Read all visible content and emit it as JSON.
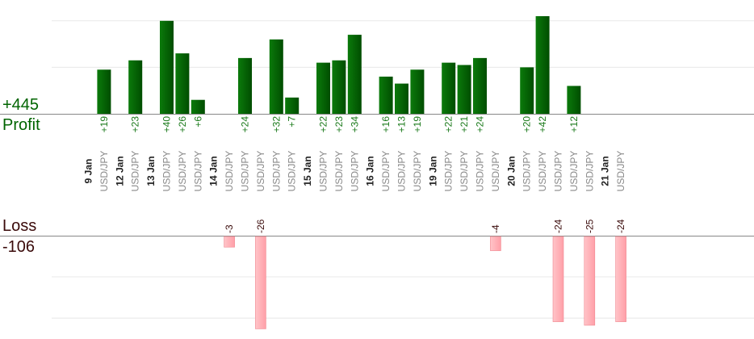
{
  "summary": {
    "profit_total": "+445",
    "profit_label": "Profit",
    "loss_label": "Loss",
    "loss_total": "-106"
  },
  "colors": {
    "profit": "#0a6a0a",
    "loss": "#ffb3b9",
    "axis": "#888888",
    "grid": "#e8e8e8",
    "date": "#222222",
    "pair": "#888888"
  },
  "chart_data": {
    "type": "bar",
    "profit_unit_step": 10,
    "loss_unit_step": 10,
    "columns": [
      {
        "date": "9 Jan"
      },
      {
        "pair": "USD/JPY",
        "value": 19,
        "label": "+19"
      },
      {
        "date": "12 Jan"
      },
      {
        "pair": "USD/JPY",
        "value": 23,
        "label": "+23"
      },
      {
        "date": "13 Jan"
      },
      {
        "pair": "USD/JPY",
        "value": 40,
        "label": "+40"
      },
      {
        "pair": "USD/JPY",
        "value": 26,
        "label": "+26"
      },
      {
        "pair": "USD/JPY",
        "value": 6,
        "label": "+6"
      },
      {
        "date": "14 Jan"
      },
      {
        "pair": "USD/JPY",
        "value": -3,
        "label": "-3"
      },
      {
        "pair": "USD/JPY",
        "value": 24,
        "label": "+24"
      },
      {
        "pair": "USD/JPY",
        "value": -26,
        "label": "-26"
      },
      {
        "pair": "USD/JPY",
        "value": 32,
        "label": "+32"
      },
      {
        "pair": "USD/JPY",
        "value": 7,
        "label": "+7"
      },
      {
        "date": "15 Jan"
      },
      {
        "pair": "USD/JPY",
        "value": 22,
        "label": "+22"
      },
      {
        "pair": "USD/JPY",
        "value": 23,
        "label": "+23"
      },
      {
        "pair": "USD/JPY",
        "value": 34,
        "label": "+34"
      },
      {
        "date": "16 Jan"
      },
      {
        "pair": "USD/JPY",
        "value": 16,
        "label": "+16"
      },
      {
        "pair": "USD/JPY",
        "value": 13,
        "label": "+13"
      },
      {
        "pair": "USD/JPY",
        "value": 19,
        "label": "+19"
      },
      {
        "date": "19 Jan"
      },
      {
        "pair": "USD/JPY",
        "value": 22,
        "label": "+22"
      },
      {
        "pair": "USD/JPY",
        "value": 21,
        "label": "+21"
      },
      {
        "pair": "USD/JPY",
        "value": 24,
        "label": "+24"
      },
      {
        "pair": "USD/JPY",
        "value": -4,
        "label": "-4"
      },
      {
        "date": "20 Jan"
      },
      {
        "pair": "USD/JPY",
        "value": 20,
        "label": "+20"
      },
      {
        "pair": "USD/JPY",
        "value": 42,
        "label": "+42"
      },
      {
        "pair": "USD/JPY",
        "value": -24,
        "label": "-24"
      },
      {
        "pair": "USD/JPY",
        "value": 12,
        "label": "+12"
      },
      {
        "pair": "USD/JPY",
        "value": -25,
        "label": "-25"
      },
      {
        "date": "21 Jan"
      },
      {
        "pair": "USD/JPY",
        "value": -24,
        "label": "-24"
      }
    ]
  }
}
